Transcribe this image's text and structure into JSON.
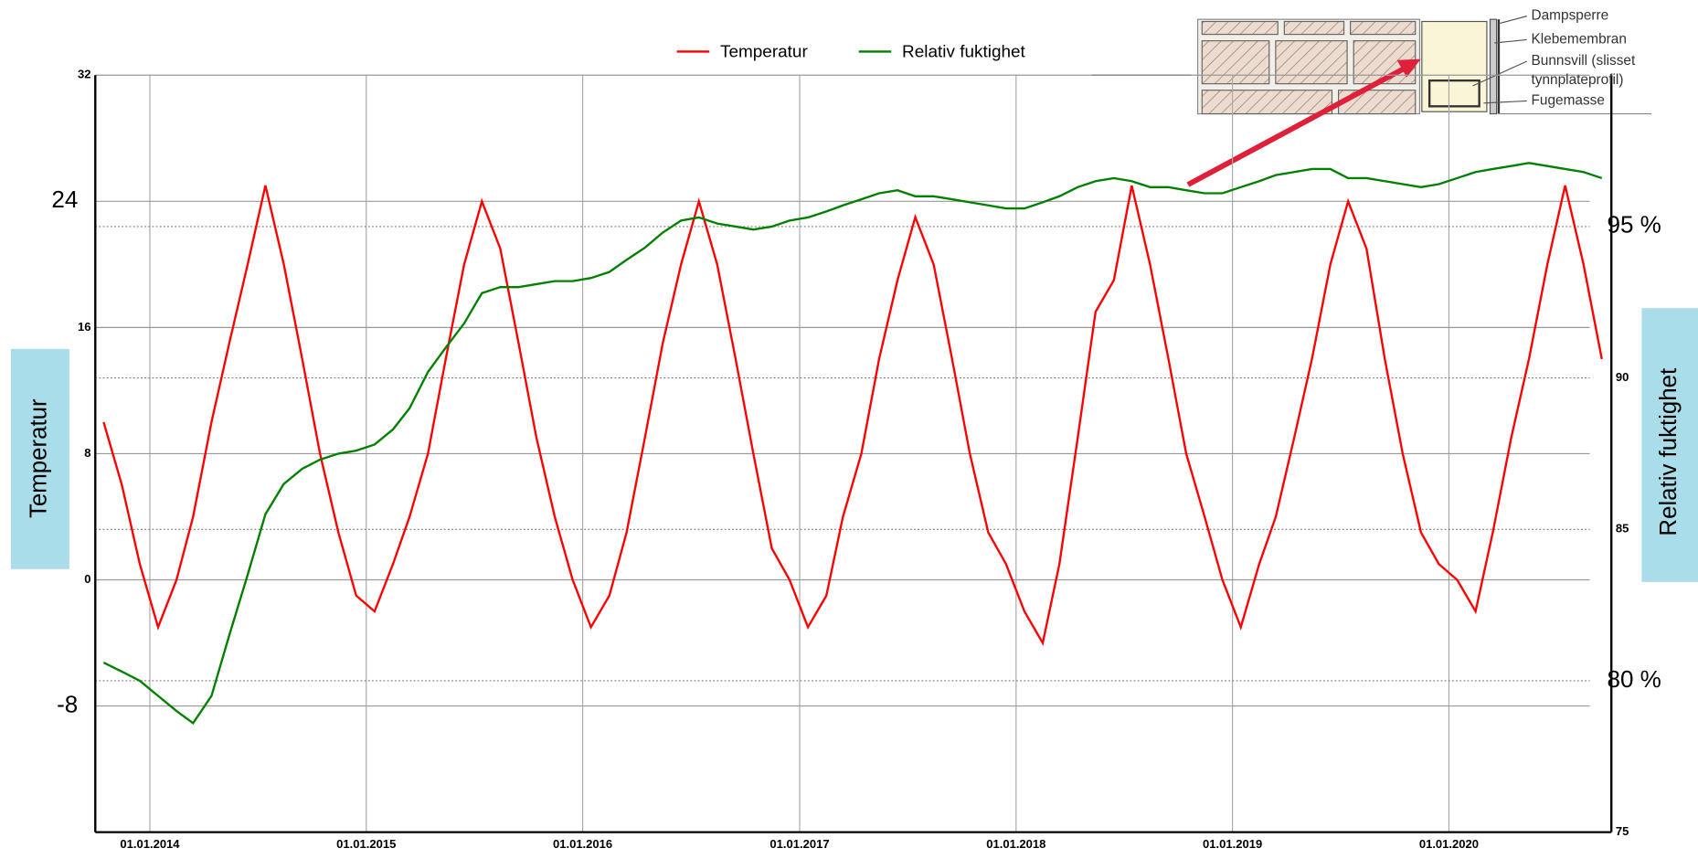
{
  "chart_data": {
    "type": "line",
    "ylabel": "Temperatur",
    "y2label": "Relativ fuktighet",
    "legend": "top",
    "grid": true,
    "xlim": [
      "01.10.2013",
      "01.10.2020"
    ],
    "xticks": [
      "01.01.2014",
      "01.01.2015",
      "01.01.2016",
      "01.01.2017",
      "01.01.2018",
      "01.01.2019",
      "01.01.2020"
    ],
    "ylim": [
      -16,
      32
    ],
    "yticks": [
      -8,
      0,
      8,
      16,
      24,
      32
    ],
    "y2lim": [
      75,
      100
    ],
    "y2ticks": [
      75,
      {
        "value": 80,
        "label": "80 %"
      },
      85,
      90,
      {
        "value": 95,
        "label": "95 %"
      }
    ],
    "inset_labels": [
      "Dampsperre",
      "Klebemembran",
      "Bunnsvill (slisset",
      "tynnplateprofil)",
      "Fugemasse"
    ],
    "x": [
      "15.10.2013",
      "15.11.2013",
      "15.12.2013",
      "15.01.2014",
      "15.02.2014",
      "15.03.2014",
      "15.04.2014",
      "15.05.2014",
      "15.06.2014",
      "15.07.2014",
      "15.08.2014",
      "15.09.2014",
      "15.10.2014",
      "15.11.2014",
      "15.12.2014",
      "15.01.2015",
      "15.02.2015",
      "15.03.2015",
      "15.04.2015",
      "15.05.2015",
      "15.06.2015",
      "15.07.2015",
      "15.08.2015",
      "15.09.2015",
      "15.10.2015",
      "15.11.2015",
      "15.12.2015",
      "15.01.2016",
      "15.02.2016",
      "15.03.2016",
      "15.04.2016",
      "15.05.2016",
      "15.06.2016",
      "15.07.2016",
      "15.08.2016",
      "15.09.2016",
      "15.10.2016",
      "15.11.2016",
      "15.12.2016",
      "15.01.2017",
      "15.02.2017",
      "15.03.2017",
      "15.04.2017",
      "15.05.2017",
      "15.06.2017",
      "15.07.2017",
      "15.08.2017",
      "15.09.2017",
      "15.10.2017",
      "15.11.2017",
      "15.12.2017",
      "15.01.2018",
      "15.02.2018",
      "15.03.2018",
      "15.04.2018",
      "15.05.2018",
      "15.06.2018",
      "15.07.2018",
      "15.08.2018",
      "15.09.2018",
      "15.10.2018",
      "15.11.2018",
      "15.12.2018",
      "15.01.2019",
      "15.02.2019",
      "15.03.2019",
      "15.04.2019",
      "15.05.2019",
      "15.06.2019",
      "15.07.2019",
      "15.08.2019",
      "15.09.2019",
      "15.10.2019",
      "15.11.2019",
      "15.12.2019",
      "15.01.2020",
      "15.02.2020",
      "15.03.2020",
      "15.04.2020",
      "15.05.2020",
      "15.06.2020",
      "15.07.2020",
      "15.08.2020",
      "15.09.2020"
    ],
    "series": [
      {
        "name": "Temperatur",
        "color": "#ff0000",
        "axis": "y",
        "values": [
          10,
          6,
          1,
          -3,
          0,
          4,
          10,
          15,
          20,
          25,
          20,
          14,
          8,
          3,
          -1,
          -2,
          1,
          4,
          8,
          14,
          20,
          24,
          21,
          15,
          9,
          4,
          0,
          -3,
          -1,
          3,
          9,
          15,
          20,
          24,
          20,
          14,
          8,
          2,
          0,
          -3,
          -1,
          4,
          8,
          14,
          19,
          23,
          20,
          14,
          8,
          3,
          1,
          -2,
          -4,
          1,
          9,
          17,
          19,
          25,
          20,
          14,
          8,
          4,
          0,
          -3,
          1,
          4,
          9,
          14,
          20,
          24,
          21,
          14,
          8,
          3,
          1,
          0,
          -2,
          3,
          9,
          14,
          20,
          25,
          20,
          14
        ]
      },
      {
        "name": "Relativ fuktighet",
        "color": "#008000",
        "axis": "y2",
        "values": [
          80.6,
          80.3,
          80.0,
          79.5,
          79.0,
          78.6,
          79.5,
          81.5,
          83.5,
          85.5,
          86.5,
          87.0,
          87.3,
          87.5,
          87.6,
          87.8,
          88.3,
          89.0,
          90.2,
          91.0,
          91.8,
          92.8,
          93.0,
          93.0,
          93.1,
          93.2,
          93.2,
          93.3,
          93.5,
          93.9,
          94.3,
          94.8,
          95.2,
          95.3,
          95.1,
          95.0,
          94.9,
          95.0,
          95.2,
          95.3,
          95.5,
          95.7,
          95.9,
          96.1,
          96.2,
          96.0,
          96.0,
          95.9,
          95.8,
          95.7,
          95.6,
          95.6,
          95.8,
          96.0,
          96.3,
          96.5,
          96.6,
          96.5,
          96.3,
          96.3,
          96.2,
          96.1,
          96.1,
          96.3,
          96.5,
          96.7,
          96.8,
          96.9,
          96.9,
          96.6,
          96.6,
          96.5,
          96.4,
          96.3,
          96.4,
          96.6,
          96.8,
          96.9,
          97.0,
          97.1,
          97.0,
          96.9,
          96.8,
          96.6
        ]
      }
    ]
  }
}
